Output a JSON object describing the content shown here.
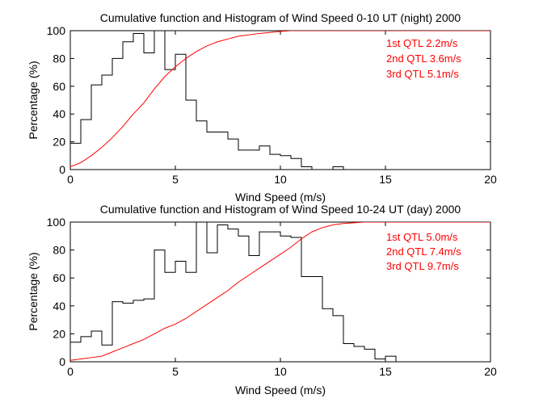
{
  "chart_data": [
    {
      "type": "line",
      "title": "Cumulative function and Histogram of Wind Speed 0-10 UT (night) 2000",
      "xlabel": "Wind Speed (m/s)",
      "ylabel": "Percentage (%)",
      "xlim": [
        0,
        20
      ],
      "ylim": [
        0,
        100
      ],
      "xticks": [
        0,
        5,
        10,
        15,
        20
      ],
      "yticks": [
        0,
        20,
        40,
        60,
        80,
        100
      ],
      "colors": {
        "histogram": "#000000",
        "cumulative": "#ff0000",
        "annotation": "#ff0000"
      },
      "annotations": [
        "1st QTL 2.2m/s",
        "2nd QTL 3.6m/s",
        "3rd QTL 5.1m/s"
      ],
      "series": [
        {
          "name": "histogram",
          "style": "stairs",
          "edges": [
            0,
            0.5,
            1,
            1.5,
            2,
            2.5,
            3,
            3.5,
            4,
            4.5,
            5,
            5.5,
            6,
            6.5,
            7,
            7.5,
            8,
            8.5,
            9,
            9.5,
            10,
            10.5,
            11,
            11.5,
            12,
            12.5,
            13,
            13.5
          ],
          "values": [
            19,
            36,
            61,
            68,
            80,
            92,
            98,
            84,
            100,
            72,
            83,
            50,
            35,
            27,
            27,
            22,
            14,
            14,
            17,
            11,
            10,
            8,
            2,
            0,
            0,
            2,
            0
          ]
        },
        {
          "name": "cumulative",
          "style": "line",
          "x": [
            0,
            0.5,
            1,
            1.5,
            2,
            2.5,
            3,
            3.5,
            4,
            4.5,
            5,
            5.5,
            6,
            6.5,
            7,
            7.5,
            8,
            9,
            10,
            10.5,
            11,
            12,
            13,
            20
          ],
          "y": [
            2,
            5,
            10,
            16,
            23,
            31,
            40,
            48,
            58,
            67,
            74,
            80,
            85,
            89,
            92,
            94,
            96,
            98,
            99.5,
            100,
            100,
            100,
            100,
            100
          ]
        }
      ]
    },
    {
      "type": "line",
      "title": "Cumulative function and Histogram of Wind Speed 10-24 UT (day) 2000",
      "xlabel": "Wind Speed (m/s)",
      "ylabel": "Percentage (%)",
      "xlim": [
        0,
        20
      ],
      "ylim": [
        0,
        100
      ],
      "xticks": [
        0,
        5,
        10,
        15,
        20
      ],
      "yticks": [
        0,
        20,
        40,
        60,
        80,
        100
      ],
      "colors": {
        "histogram": "#000000",
        "cumulative": "#ff0000",
        "annotation": "#ff0000"
      },
      "annotations": [
        "1st QTL 5.0m/s",
        "2nd QTL 7.4m/s",
        "3rd QTL 9.7m/s"
      ],
      "series": [
        {
          "name": "histogram",
          "style": "stairs",
          "edges": [
            0,
            0.5,
            1,
            1.5,
            2,
            2.5,
            3,
            3.5,
            4,
            4.5,
            5,
            5.5,
            6,
            6.5,
            7,
            7.5,
            8,
            8.5,
            9,
            9.5,
            10,
            10.5,
            11,
            11.5,
            12,
            12.5,
            13,
            13.5,
            14,
            14.5,
            15,
            15.5
          ],
          "values": [
            14,
            18,
            22,
            12,
            43,
            42,
            44,
            45,
            80,
            64,
            72,
            64,
            100,
            78,
            98,
            95,
            90,
            76,
            93,
            93,
            90,
            89,
            61,
            61,
            38,
            33,
            13,
            11,
            9,
            2,
            4
          ]
        },
        {
          "name": "cumulative",
          "style": "line",
          "x": [
            0,
            0.5,
            1,
            1.5,
            2,
            2.5,
            3,
            3.5,
            4,
            4.5,
            5,
            5.5,
            6,
            6.5,
            7,
            7.5,
            8,
            8.5,
            9,
            9.5,
            10,
            10.5,
            11,
            11.5,
            12,
            12.5,
            13,
            13.5,
            14,
            14.5,
            15,
            20
          ],
          "y": [
            1,
            2,
            3,
            4,
            7,
            10,
            13,
            16,
            20,
            24,
            27,
            31,
            36,
            41,
            46,
            51,
            57,
            62,
            67,
            72,
            77,
            82,
            88,
            93,
            96,
            98,
            99,
            99.5,
            100,
            100,
            100,
            100
          ]
        }
      ]
    }
  ]
}
